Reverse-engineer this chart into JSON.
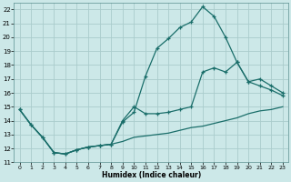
{
  "xlabel": "Humidex (Indice chaleur)",
  "bg_color": "#cce8e8",
  "grid_color": "#aacccc",
  "line_color": "#1a6e6a",
  "xlim": [
    -0.5,
    23.5
  ],
  "ylim": [
    11,
    22.5
  ],
  "xticks": [
    0,
    1,
    2,
    3,
    4,
    5,
    6,
    7,
    8,
    9,
    10,
    11,
    12,
    13,
    14,
    15,
    16,
    17,
    18,
    19,
    20,
    21,
    22,
    23
  ],
  "yticks": [
    11,
    12,
    13,
    14,
    15,
    16,
    17,
    18,
    19,
    20,
    21,
    22
  ],
  "curve1_x": [
    0,
    1,
    2,
    3,
    4,
    5,
    6,
    7,
    8,
    9,
    10,
    11,
    12,
    13,
    14,
    15,
    16,
    17,
    18,
    19,
    20,
    21,
    22,
    23
  ],
  "curve1_y": [
    14.8,
    13.7,
    12.8,
    11.7,
    11.6,
    11.9,
    12.1,
    12.2,
    12.3,
    13.9,
    14.6,
    17.2,
    19.2,
    19.9,
    20.7,
    21.1,
    22.2,
    21.5,
    20.0,
    18.2,
    16.8,
    16.5,
    16.2,
    15.8
  ],
  "curve2_x": [
    0,
    1,
    2,
    3,
    4,
    5,
    6,
    7,
    8,
    9,
    10,
    11,
    12,
    13,
    14,
    15,
    16,
    17,
    18,
    19,
    20,
    21,
    22,
    23
  ],
  "curve2_y": [
    14.8,
    13.7,
    12.8,
    11.7,
    11.6,
    11.9,
    12.1,
    12.2,
    12.3,
    14.0,
    15.0,
    14.5,
    14.5,
    14.6,
    14.8,
    15.0,
    17.5,
    17.8,
    17.5,
    18.2,
    16.8,
    17.0,
    16.5,
    16.0
  ],
  "curve3_x": [
    0,
    1,
    2,
    3,
    4,
    5,
    6,
    7,
    8,
    9,
    10,
    11,
    12,
    13,
    14,
    15,
    16,
    17,
    18,
    19,
    20,
    21,
    22,
    23
  ],
  "curve3_y": [
    14.8,
    13.7,
    12.8,
    11.7,
    11.6,
    11.9,
    12.1,
    12.2,
    12.3,
    12.5,
    12.8,
    12.9,
    13.0,
    13.1,
    13.3,
    13.5,
    13.6,
    13.8,
    14.0,
    14.2,
    14.5,
    14.7,
    14.8,
    15.0
  ]
}
